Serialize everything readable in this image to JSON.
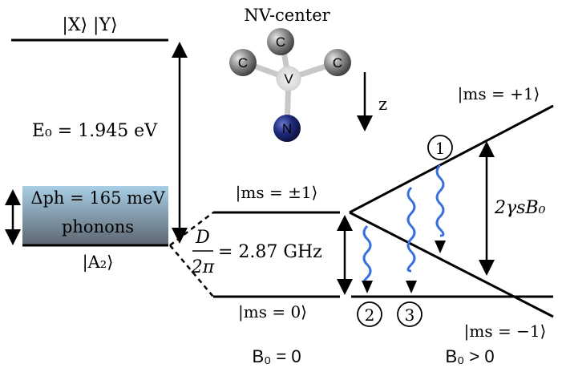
{
  "ground_labels": {
    "excited_state": "|X⟩ |Y⟩",
    "zero_phonon_energy": "E₀ = 1.945 eV",
    "phonon_width": "Δph = 165 meV",
    "phonons": "phonons",
    "ground_state": "|A₂⟩"
  },
  "molecule": {
    "title": "NV-center",
    "atom_c1": "C",
    "atom_c2": "C",
    "atom_c3": "C",
    "atom_v": "V",
    "atom_n": "N",
    "z_axis": "z"
  },
  "zero_field": {
    "level_pm1": "|ms = ±1⟩",
    "level_0": "|ms = 0⟩",
    "splitting_num": "D",
    "splitting_den": "2π",
    "splitting_value": "= 2.87 GHz",
    "condition": "B₀ = 0"
  },
  "finite_field": {
    "level_p1": "|ms = +1⟩",
    "level_m1": "|ms = −1⟩",
    "zeeman": "2γsB₀",
    "condition": "B₀ > 0",
    "transition_1": "1",
    "transition_2": "2",
    "transition_3": "3"
  },
  "colors": {
    "level_line": "#000000",
    "wavy_arrow": "#3a6fe0",
    "phonon_band_top": "#a9cfe6",
    "phonon_band_bottom": "#5f6b75",
    "nitrogen": "#1f2a7a",
    "carbon": "#777777"
  }
}
